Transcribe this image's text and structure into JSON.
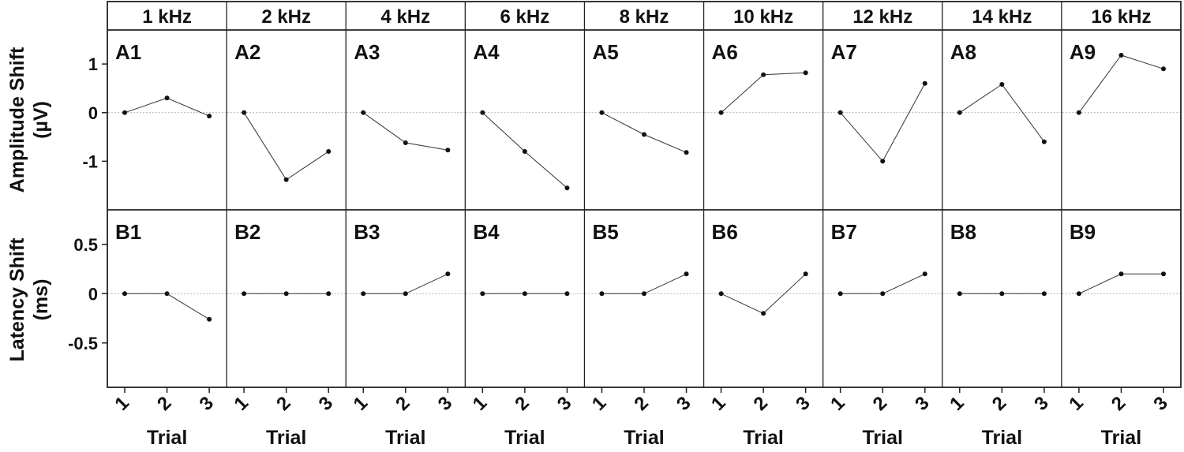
{
  "chart_data": {
    "type": "line",
    "frequencies": [
      "1 kHz",
      "2 kHz",
      "4 kHz",
      "6 kHz",
      "8 kHz",
      "10 kHz",
      "12 kHz",
      "14 kHz",
      "16 kHz"
    ],
    "x": [
      1,
      2,
      3
    ],
    "xtick_labels": [
      "1",
      "2",
      "3"
    ],
    "xlabel": "Trial",
    "rows": [
      {
        "ylabel_line1": "Amplitude Shift",
        "ylabel_line2": "(µV)",
        "ylim": [
          -2,
          1.7
        ],
        "yticks": [
          1,
          0,
          -1
        ],
        "ytick_labels": [
          "1",
          "0",
          "-1"
        ],
        "panels": [
          {
            "label": "A1",
            "values": [
              0,
              0.3,
              -0.07
            ]
          },
          {
            "label": "A2",
            "values": [
              0,
              -1.38,
              -0.8
            ]
          },
          {
            "label": "A3",
            "values": [
              0,
              -0.62,
              -0.77
            ]
          },
          {
            "label": "A4",
            "values": [
              0,
              -0.8,
              -1.55
            ]
          },
          {
            "label": "A5",
            "values": [
              0,
              -0.45,
              -0.82
            ]
          },
          {
            "label": "A6",
            "values": [
              0,
              0.78,
              0.82
            ]
          },
          {
            "label": "A7",
            "values": [
              0,
              -1.0,
              0.6
            ]
          },
          {
            "label": "A8",
            "values": [
              0,
              0.58,
              -0.6
            ]
          },
          {
            "label": "A9",
            "values": [
              0,
              1.18,
              0.9
            ]
          }
        ]
      },
      {
        "ylabel_line1": "Latency Shift",
        "ylabel_line2": "(ms)",
        "ylim": [
          -0.95,
          0.85
        ],
        "yticks": [
          0.5,
          0,
          -0.5
        ],
        "ytick_labels": [
          "0.5",
          "0",
          "-0.5"
        ],
        "panels": [
          {
            "label": "B1",
            "values": [
              0,
              0,
              -0.26
            ]
          },
          {
            "label": "B2",
            "values": [
              0,
              0,
              0
            ]
          },
          {
            "label": "B3",
            "values": [
              0,
              0,
              0.2
            ]
          },
          {
            "label": "B4",
            "values": [
              0,
              0,
              0
            ]
          },
          {
            "label": "B5",
            "values": [
              0,
              0,
              0.2
            ]
          },
          {
            "label": "B6",
            "values": [
              0,
              -0.2,
              0.2
            ]
          },
          {
            "label": "B7",
            "values": [
              0,
              0,
              0.2
            ]
          },
          {
            "label": "B8",
            "values": [
              0,
              0,
              0
            ]
          },
          {
            "label": "B9",
            "values": [
              0,
              0.2,
              0.2
            ]
          }
        ]
      }
    ],
    "zero_line": true,
    "grid": false,
    "colors": {
      "line": "#333333",
      "marker": "#111111",
      "zero_line": "#9a9a9a",
      "axes": "#222222"
    }
  }
}
